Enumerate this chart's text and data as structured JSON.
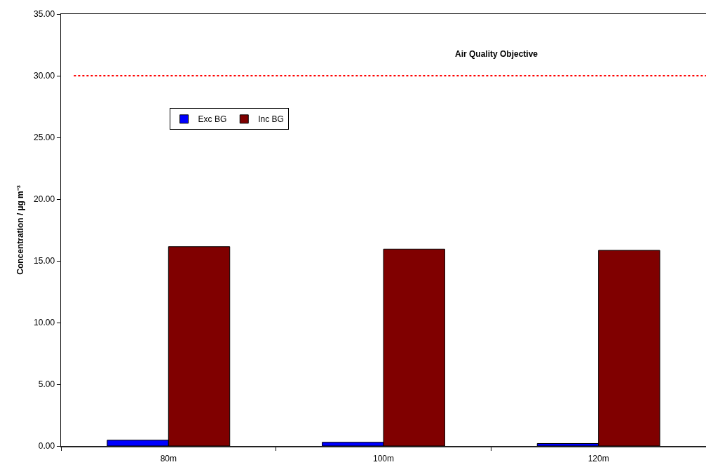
{
  "chart_data": {
    "type": "bar",
    "ylabel": "Concentration / µg m⁻³",
    "categories": [
      "80m",
      "100m",
      "120m"
    ],
    "series": [
      {
        "name": "Exc BG",
        "color": "#0000ff",
        "values": [
          0.47,
          0.3,
          0.2
        ]
      },
      {
        "name": "Inc BG",
        "color": "#800000",
        "values": [
          16.15,
          15.95,
          15.85
        ]
      }
    ],
    "ylim": [
      0,
      35
    ],
    "yticks": [
      {
        "value": 0,
        "label": "0.00"
      },
      {
        "value": 5,
        "label": "5.00"
      },
      {
        "value": 10,
        "label": "10.00"
      },
      {
        "value": 15,
        "label": "15.00"
      },
      {
        "value": 20,
        "label": "20.00"
      },
      {
        "value": 25,
        "label": "25.00"
      },
      {
        "value": 30,
        "label": "30.00"
      },
      {
        "value": 35,
        "label": "35.00"
      }
    ],
    "ref_lines": [
      {
        "axis": "y",
        "value": 30,
        "label": "Air Quality Objective",
        "color": "#ff0000",
        "line_style": "dotted"
      }
    ],
    "legend": "top left",
    "grid": false
  }
}
